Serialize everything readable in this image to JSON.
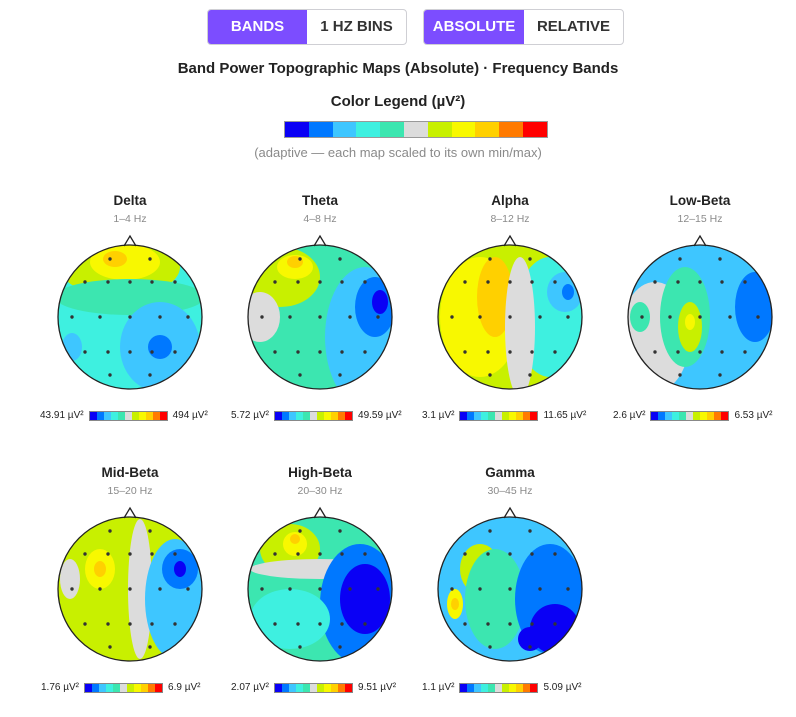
{
  "toggles": {
    "mode": [
      {
        "label": "BANDS",
        "active": true
      },
      {
        "label": "1 HZ BINS",
        "active": false
      }
    ],
    "scale": [
      {
        "label": "ABSOLUTE",
        "active": true
      },
      {
        "label": "RELATIVE",
        "active": false
      }
    ]
  },
  "header": {
    "title": "Band Power Topographic Maps (Absolute) · Frequency Bands",
    "legend_title": "Color Legend (µV²)",
    "legend_note": "(adaptive — each map scaled to its own min/max)"
  },
  "palette": [
    "#0a00f5",
    "#0078ff",
    "#3ec6ff",
    "#3ef0e0",
    "#3ce6b0",
    "#dcdcdc",
    "#c8f000",
    "#f8f800",
    "#ffd000",
    "#ff7a00",
    "#ff0000"
  ],
  "maps": [
    {
      "name": "Delta",
      "range": "1–4 Hz",
      "min": "43.91 µV²",
      "max": "494 µV²"
    },
    {
      "name": "Theta",
      "range": "4–8 Hz",
      "min": "5.72 µV²",
      "max": "49.59 µV²"
    },
    {
      "name": "Alpha",
      "range": "8–12 Hz",
      "min": "3.1 µV²",
      "max": "11.65 µV²"
    },
    {
      "name": "Low-Beta",
      "range": "12–15 Hz",
      "min": "2.6 µV²",
      "max": "6.53 µV²"
    },
    {
      "name": "Mid-Beta",
      "range": "15–20 Hz",
      "min": "1.76 µV²",
      "max": "6.9 µV²"
    },
    {
      "name": "High-Beta",
      "range": "20–30 Hz",
      "min": "2.07 µV²",
      "max": "9.51 µV²"
    },
    {
      "name": "Gamma",
      "range": "30–45 Hz",
      "min": "1.1 µV²",
      "max": "5.09 µV²"
    }
  ]
}
